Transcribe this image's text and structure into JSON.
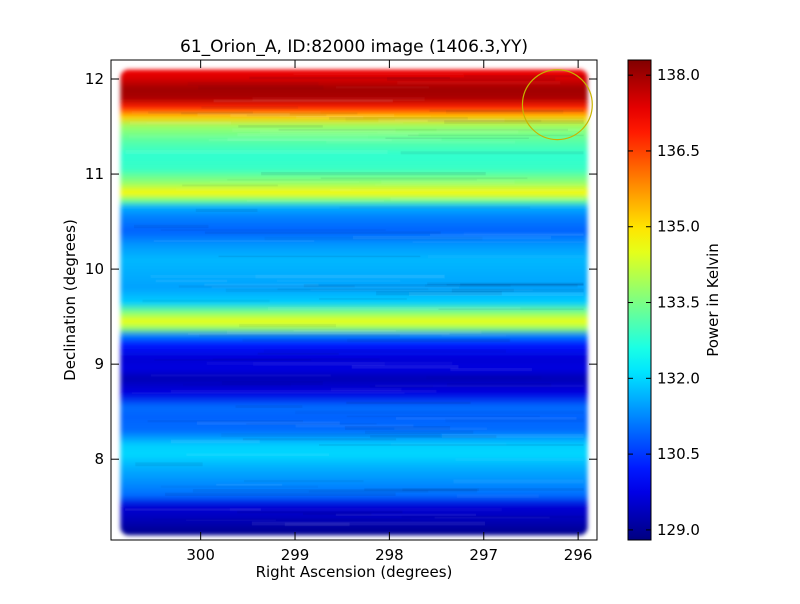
{
  "chart_data": {
    "type": "heatmap",
    "title": "61_Orion_A, ID:82000 image (1406.3,YY)",
    "xlabel": "Right Ascension (degrees)",
    "ylabel": "Declination (degrees)",
    "xlim": [
      300.95,
      295.8
    ],
    "ylim": [
      7.15,
      12.2
    ],
    "x_ticks": [
      300,
      299,
      298,
      297,
      296
    ],
    "y_ticks": [
      8,
      9,
      10,
      11,
      12
    ],
    "x_tick_labels": [
      "300",
      "299",
      "298",
      "297",
      "296"
    ],
    "y_tick_labels": [
      "8",
      "9",
      "10",
      "11",
      "12"
    ],
    "colormap": "jet",
    "colorbar": {
      "label": "Power in Kelvin",
      "range": [
        128.8,
        138.3
      ],
      "ticks": [
        129.0,
        130.5,
        132.0,
        133.5,
        135.0,
        136.5,
        138.0
      ],
      "tick_labels": [
        "129.0",
        "130.5",
        "132.0",
        "133.5",
        "135.0",
        "136.5",
        "138.0"
      ]
    },
    "image_extent": {
      "ra": [
        300.85,
        295.9
      ],
      "dec": [
        7.2,
        12.1
      ]
    },
    "dec_profile": [
      [
        7.2,
        128.9
      ],
      [
        7.35,
        129.3
      ],
      [
        7.5,
        129.6
      ],
      [
        7.62,
        131.0
      ],
      [
        7.75,
        131.3
      ],
      [
        7.9,
        131.6
      ],
      [
        8.05,
        132.0
      ],
      [
        8.15,
        131.9
      ],
      [
        8.3,
        131.0
      ],
      [
        8.45,
        130.9
      ],
      [
        8.55,
        131.0
      ],
      [
        8.7,
        129.7
      ],
      [
        8.85,
        129.3
      ],
      [
        8.95,
        129.7
      ],
      [
        9.05,
        129.6
      ],
      [
        9.2,
        130.2
      ],
      [
        9.3,
        131.2
      ],
      [
        9.38,
        133.8
      ],
      [
        9.45,
        134.6
      ],
      [
        9.55,
        133.5
      ],
      [
        9.65,
        131.9
      ],
      [
        9.8,
        131.5
      ],
      [
        9.95,
        131.6
      ],
      [
        10.1,
        131.7
      ],
      [
        10.25,
        131.4
      ],
      [
        10.4,
        130.9
      ],
      [
        10.55,
        131.2
      ],
      [
        10.65,
        131.6
      ],
      [
        10.72,
        133.4
      ],
      [
        10.8,
        134.8
      ],
      [
        10.9,
        133.8
      ],
      [
        11.05,
        132.9
      ],
      [
        11.2,
        132.8
      ],
      [
        11.35,
        133.2
      ],
      [
        11.5,
        133.8
      ],
      [
        11.6,
        135.2
      ],
      [
        11.7,
        136.8
      ],
      [
        11.8,
        137.9
      ],
      [
        11.9,
        138.0
      ],
      [
        12.0,
        137.5
      ],
      [
        12.1,
        137.2
      ]
    ],
    "annotations": [
      {
        "shape": "circle",
        "ra": 296.22,
        "dec": 11.73,
        "radius_deg": 0.37,
        "color": "#c8b400"
      }
    ]
  }
}
